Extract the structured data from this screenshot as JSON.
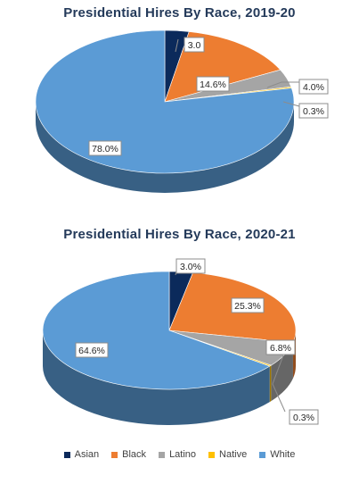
{
  "colors": {
    "Asian": "#0b2a5b",
    "Black": "#ed7d31",
    "Latino": "#a5a5a5",
    "Native": "#ffc000",
    "White": "#5b9bd5"
  },
  "chart_data": [
    {
      "type": "pie",
      "title": "Presidential  Hires By Race, 2019-20",
      "categories": [
        "Asian",
        "Black",
        "Latino",
        "Native",
        "White"
      ],
      "values": [
        3.0,
        14.6,
        4.0,
        0.3,
        78.0
      ],
      "data_labels": [
        "3.0",
        "14.6%",
        "4.0%",
        "0.3%",
        "78.0%"
      ],
      "style": "3d-perspective"
    },
    {
      "type": "pie",
      "title": "Presidential  Hires By Race, 2020-21",
      "categories": [
        "Asian",
        "Black",
        "Latino",
        "Native",
        "White"
      ],
      "values": [
        3.0,
        25.3,
        6.8,
        0.3,
        64.6
      ],
      "data_labels": [
        "3.0%",
        "25.3%",
        "6.8%",
        "0.3%",
        "64.6%"
      ],
      "style": "3d-perspective"
    }
  ],
  "legend": {
    "placement": "bottom",
    "items": [
      "Asian",
      "Black",
      "Latino",
      "Native",
      "White"
    ]
  }
}
